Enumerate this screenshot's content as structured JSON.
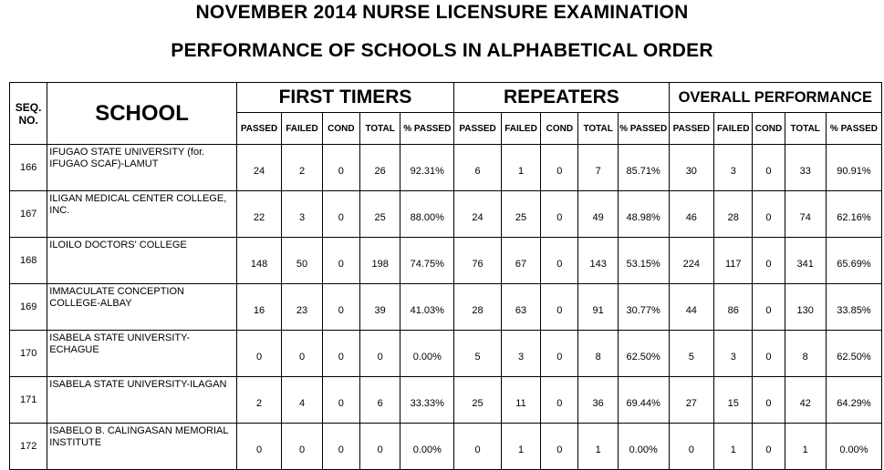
{
  "title_line1": "NOVEMBER 2014 NURSE LICENSURE EXAMINATION",
  "title_line2": "PERFORMANCE OF SCHOOLS IN ALPHABETICAL ORDER",
  "headers": {
    "seq_line1": "SEQ.",
    "seq_line2": "NO.",
    "school": "SCHOOL",
    "groups": [
      "FIRST TIMERS",
      "REPEATERS",
      "OVERALL PERFORMANCE"
    ],
    "subcols": [
      "PASSED",
      "FAILED",
      "COND",
      "TOTAL",
      "% PASSED"
    ]
  },
  "rows": [
    {
      "seq": "166",
      "school": "IFUGAO STATE UNIVERSITY (for. IFUGAO SCAF)-LAMUT",
      "first": [
        "24",
        "2",
        "0",
        "26",
        "92.31%"
      ],
      "repeat": [
        "6",
        "1",
        "0",
        "7",
        "85.71%"
      ],
      "overall": [
        "30",
        "3",
        "0",
        "33",
        "90.91%"
      ]
    },
    {
      "seq": "167",
      "school": "ILIGAN MEDICAL CENTER COLLEGE, INC.",
      "first": [
        "22",
        "3",
        "0",
        "25",
        "88.00%"
      ],
      "repeat": [
        "24",
        "25",
        "0",
        "49",
        "48.98%"
      ],
      "overall": [
        "46",
        "28",
        "0",
        "74",
        "62.16%"
      ]
    },
    {
      "seq": "168",
      "school": "ILOILO DOCTORS' COLLEGE",
      "first": [
        "148",
        "50",
        "0",
        "198",
        "74.75%"
      ],
      "repeat": [
        "76",
        "67",
        "0",
        "143",
        "53.15%"
      ],
      "overall": [
        "224",
        "117",
        "0",
        "341",
        "65.69%"
      ]
    },
    {
      "seq": "169",
      "school": "IMMACULATE CONCEPTION COLLEGE-ALBAY",
      "first": [
        "16",
        "23",
        "0",
        "39",
        "41.03%"
      ],
      "repeat": [
        "28",
        "63",
        "0",
        "91",
        "30.77%"
      ],
      "overall": [
        "44",
        "86",
        "0",
        "130",
        "33.85%"
      ]
    },
    {
      "seq": "170",
      "school": "ISABELA STATE UNIVERSITY-ECHAGUE",
      "first": [
        "0",
        "0",
        "0",
        "0",
        "0.00%"
      ],
      "repeat": [
        "5",
        "3",
        "0",
        "8",
        "62.50%"
      ],
      "overall": [
        "5",
        "3",
        "0",
        "8",
        "62.50%"
      ]
    },
    {
      "seq": "171",
      "school": "ISABELA STATE UNIVERSITY-ILAGAN",
      "first": [
        "2",
        "4",
        "0",
        "6",
        "33.33%"
      ],
      "repeat": [
        "25",
        "11",
        "0",
        "36",
        "69.44%"
      ],
      "overall": [
        "27",
        "15",
        "0",
        "42",
        "64.29%"
      ]
    },
    {
      "seq": "172",
      "school": "ISABELO B. CALINGASAN MEMORIAL INSTITUTE",
      "first": [
        "0",
        "0",
        "0",
        "0",
        "0.00%"
      ],
      "repeat": [
        "0",
        "1",
        "0",
        "1",
        "0.00%"
      ],
      "overall": [
        "0",
        "1",
        "0",
        "1",
        "0.00%"
      ]
    }
  ]
}
